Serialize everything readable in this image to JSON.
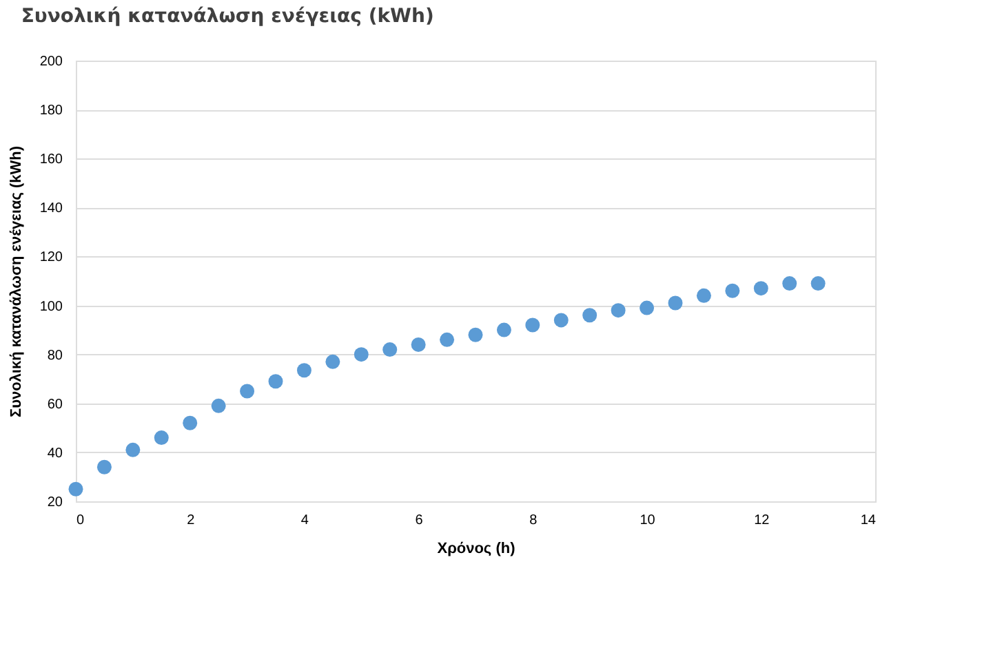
{
  "chart_data": {
    "type": "scatter",
    "title": "Συνολική κατανάλωση ενέγειας (kWh)",
    "xlabel": "Χρόνος (h)",
    "ylabel": "Συνολική κατανάλωση  ενέγειας (kWh)",
    "x": [
      0,
      0.5,
      1,
      1.5,
      2,
      2.5,
      3,
      3.5,
      4,
      4.5,
      5,
      5.5,
      6,
      6.5,
      7,
      7.5,
      8,
      8.5,
      9,
      9.5,
      10,
      10.5,
      11,
      11.5,
      12,
      12.5,
      13
    ],
    "series": [
      {
        "color": "#5b9bd5",
        "values": [
          25,
          34,
          41,
          46,
          52,
          59,
          65,
          69,
          73.5,
          77,
          80,
          82,
          84,
          86,
          88,
          90,
          92,
          94,
          96,
          98,
          99,
          101,
          104,
          106,
          107,
          109,
          109
        ]
      }
    ],
    "xlim": [
      0,
      14
    ],
    "xticks": [
      0,
      2,
      4,
      6,
      8,
      10,
      12,
      14
    ],
    "ylim": [
      20,
      200
    ],
    "yticks": [
      20,
      40,
      60,
      80,
      100,
      120,
      140,
      160,
      180,
      200
    ],
    "grid": "y",
    "marker": "circle"
  }
}
